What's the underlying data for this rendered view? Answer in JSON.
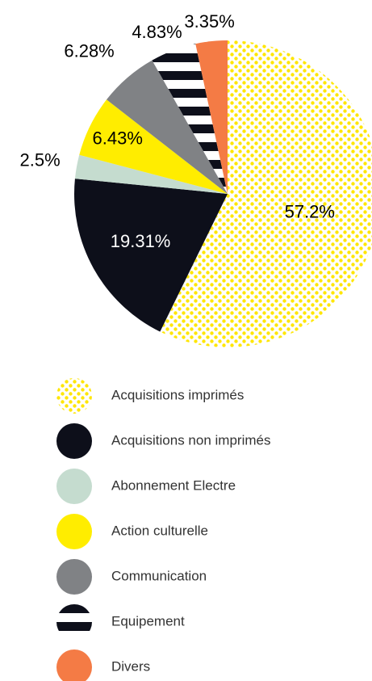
{
  "chart_data": {
    "type": "pie",
    "categories": [
      "Acquisitions imprimés",
      "Acquisitions non imprimés",
      "Abonnement Electre",
      "Action culturelle",
      "Communication",
      "Equipement",
      "Divers"
    ],
    "values": [
      57.2,
      19.31,
      2.5,
      6.43,
      6.28,
      4.83,
      3.35
    ],
    "value_labels": [
      "57.2%",
      "19.31%",
      "2.5%",
      "6.43%",
      "6.28%",
      "4.83%",
      "3.35%"
    ],
    "colors": [
      "#ffe600",
      "#0d0f1a",
      "#c5dccf",
      "#ffed00",
      "#808285",
      "#0d0f1a",
      "#f47b45"
    ],
    "patterns": [
      "dots",
      null,
      null,
      null,
      null,
      "stripes",
      null
    ],
    "legend": "bottom"
  }
}
